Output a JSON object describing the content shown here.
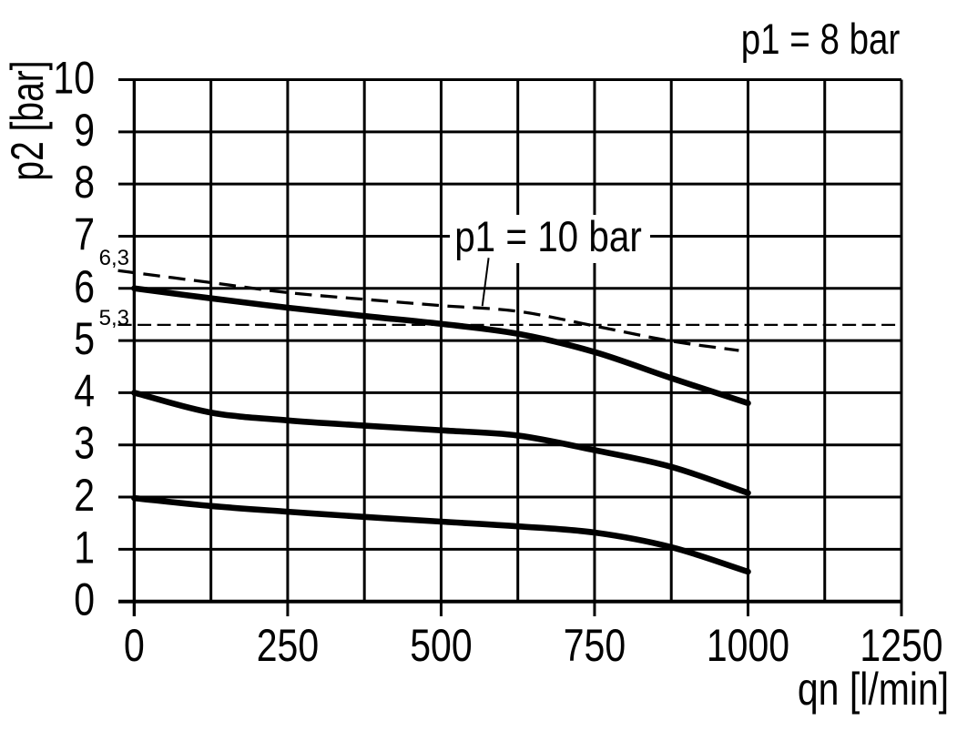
{
  "chart_data": {
    "type": "line",
    "title": "p1 = 8 bar",
    "xlabel": "qn [l/min]",
    "ylabel": "p2 [bar]",
    "xlim": [
      0,
      1250
    ],
    "ylim": [
      0,
      10
    ],
    "x_tick_labels": [
      0,
      250,
      500,
      750,
      1000,
      1250
    ],
    "x_grid_step": 125,
    "y_tick_labels": [
      0,
      1,
      2,
      3,
      4,
      5,
      6,
      7,
      8,
      9,
      10
    ],
    "y_grid_step": 1,
    "grid": true,
    "legend_position": "none",
    "annotation": {
      "text": "p1 = 10 bar",
      "points_to_series": "p1-10bar-setting-6.3"
    },
    "left_markers": [
      {
        "value": 6.3,
        "label": "6,3"
      },
      {
        "value": 5.3,
        "label": "5,3"
      }
    ],
    "series": [
      {
        "name": "p1-10bar-setting-6.3",
        "style": "dashed-thick",
        "starts_at_axis_tick": true,
        "x": [
          0,
          125,
          250,
          375,
          500,
          625,
          750,
          875,
          985
        ],
        "y": [
          6.3,
          6.11,
          5.92,
          5.79,
          5.67,
          5.56,
          5.28,
          4.99,
          4.81
        ]
      },
      {
        "name": "p1-8bar-setting-6",
        "style": "solid-thick",
        "x": [
          0,
          125,
          250,
          375,
          500,
          625,
          750,
          875,
          1000
        ],
        "y": [
          6.0,
          5.81,
          5.63,
          5.47,
          5.32,
          5.13,
          4.78,
          4.28,
          3.8
        ]
      },
      {
        "name": "p1-8bar-setting-4",
        "style": "solid-thick",
        "x": [
          0,
          125,
          250,
          375,
          500,
          625,
          750,
          875,
          1000
        ],
        "y": [
          4.0,
          3.62,
          3.47,
          3.37,
          3.28,
          3.18,
          2.9,
          2.58,
          2.08
        ]
      },
      {
        "name": "p1-8bar-setting-2",
        "style": "solid-thick",
        "x": [
          0,
          125,
          250,
          375,
          500,
          625,
          750,
          875,
          1000
        ],
        "y": [
          1.98,
          1.83,
          1.72,
          1.62,
          1.53,
          1.44,
          1.32,
          1.04,
          0.57
        ]
      },
      {
        "name": "reference-5.3",
        "style": "dashed-thin",
        "starts_at_axis_tick": true,
        "x": [
          0,
          1250
        ],
        "y": [
          5.3,
          5.3
        ]
      }
    ]
  }
}
